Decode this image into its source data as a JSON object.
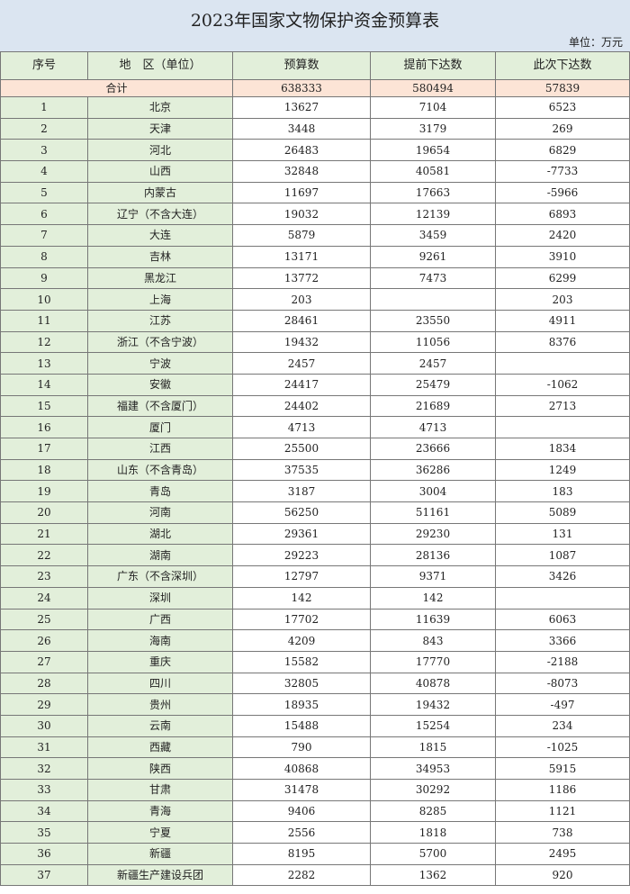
{
  "title": "2023年国家文物保护资金预算表",
  "unit": "单位：万元",
  "colors": {
    "title_bg": "#dbe5f1",
    "header_bg": "#e2efda",
    "total_bg": "#fce4d6"
  },
  "table": {
    "headers": [
      "序号",
      "地　区（单位）",
      "预算数",
      "提前下达数",
      "此次下达数"
    ],
    "total": {
      "label": "合计",
      "budget": "638333",
      "advance": "580494",
      "current": "57839"
    },
    "rows": [
      [
        "1",
        "北京",
        "13627",
        "7104",
        "6523"
      ],
      [
        "2",
        "天津",
        "3448",
        "3179",
        "269"
      ],
      [
        "3",
        "河北",
        "26483",
        "19654",
        "6829"
      ],
      [
        "4",
        "山西",
        "32848",
        "40581",
        "-7733"
      ],
      [
        "5",
        "内蒙古",
        "11697",
        "17663",
        "-5966"
      ],
      [
        "6",
        "辽宁（不含大连）",
        "19032",
        "12139",
        "6893"
      ],
      [
        "7",
        "大连",
        "5879",
        "3459",
        "2420"
      ],
      [
        "8",
        "吉林",
        "13171",
        "9261",
        "3910"
      ],
      [
        "9",
        "黑龙江",
        "13772",
        "7473",
        "6299"
      ],
      [
        "10",
        "上海",
        "203",
        "",
        "203"
      ],
      [
        "11",
        "江苏",
        "28461",
        "23550",
        "4911"
      ],
      [
        "12",
        "浙江（不含宁波）",
        "19432",
        "11056",
        "8376"
      ],
      [
        "13",
        "宁波",
        "2457",
        "2457",
        ""
      ],
      [
        "14",
        "安徽",
        "24417",
        "25479",
        "-1062"
      ],
      [
        "15",
        "福建（不含厦门）",
        "24402",
        "21689",
        "2713"
      ],
      [
        "16",
        "厦门",
        "4713",
        "4713",
        ""
      ],
      [
        "17",
        "江西",
        "25500",
        "23666",
        "1834"
      ],
      [
        "18",
        "山东（不含青岛）",
        "37535",
        "36286",
        "1249"
      ],
      [
        "19",
        "青岛",
        "3187",
        "3004",
        "183"
      ],
      [
        "20",
        "河南",
        "56250",
        "51161",
        "5089"
      ],
      [
        "21",
        "湖北",
        "29361",
        "29230",
        "131"
      ],
      [
        "22",
        "湖南",
        "29223",
        "28136",
        "1087"
      ],
      [
        "23",
        "广东（不含深圳）",
        "12797",
        "9371",
        "3426"
      ],
      [
        "24",
        "深圳",
        "142",
        "142",
        ""
      ],
      [
        "25",
        "广西",
        "17702",
        "11639",
        "6063"
      ],
      [
        "26",
        "海南",
        "4209",
        "843",
        "3366"
      ],
      [
        "27",
        "重庆",
        "15582",
        "17770",
        "-2188"
      ],
      [
        "28",
        "四川",
        "32805",
        "40878",
        "-8073"
      ],
      [
        "29",
        "贵州",
        "18935",
        "19432",
        "-497"
      ],
      [
        "30",
        "云南",
        "15488",
        "15254",
        "234"
      ],
      [
        "31",
        "西藏",
        "790",
        "1815",
        "-1025"
      ],
      [
        "32",
        "陕西",
        "40868",
        "34953",
        "5915"
      ],
      [
        "33",
        "甘肃",
        "31478",
        "30292",
        "1186"
      ],
      [
        "34",
        "青海",
        "9406",
        "8285",
        "1121"
      ],
      [
        "35",
        "宁夏",
        "2556",
        "1818",
        "738"
      ],
      [
        "36",
        "新疆",
        "8195",
        "5700",
        "2495"
      ],
      [
        "37",
        "新疆生产建设兵团",
        "2282",
        "1362",
        "920"
      ]
    ]
  }
}
